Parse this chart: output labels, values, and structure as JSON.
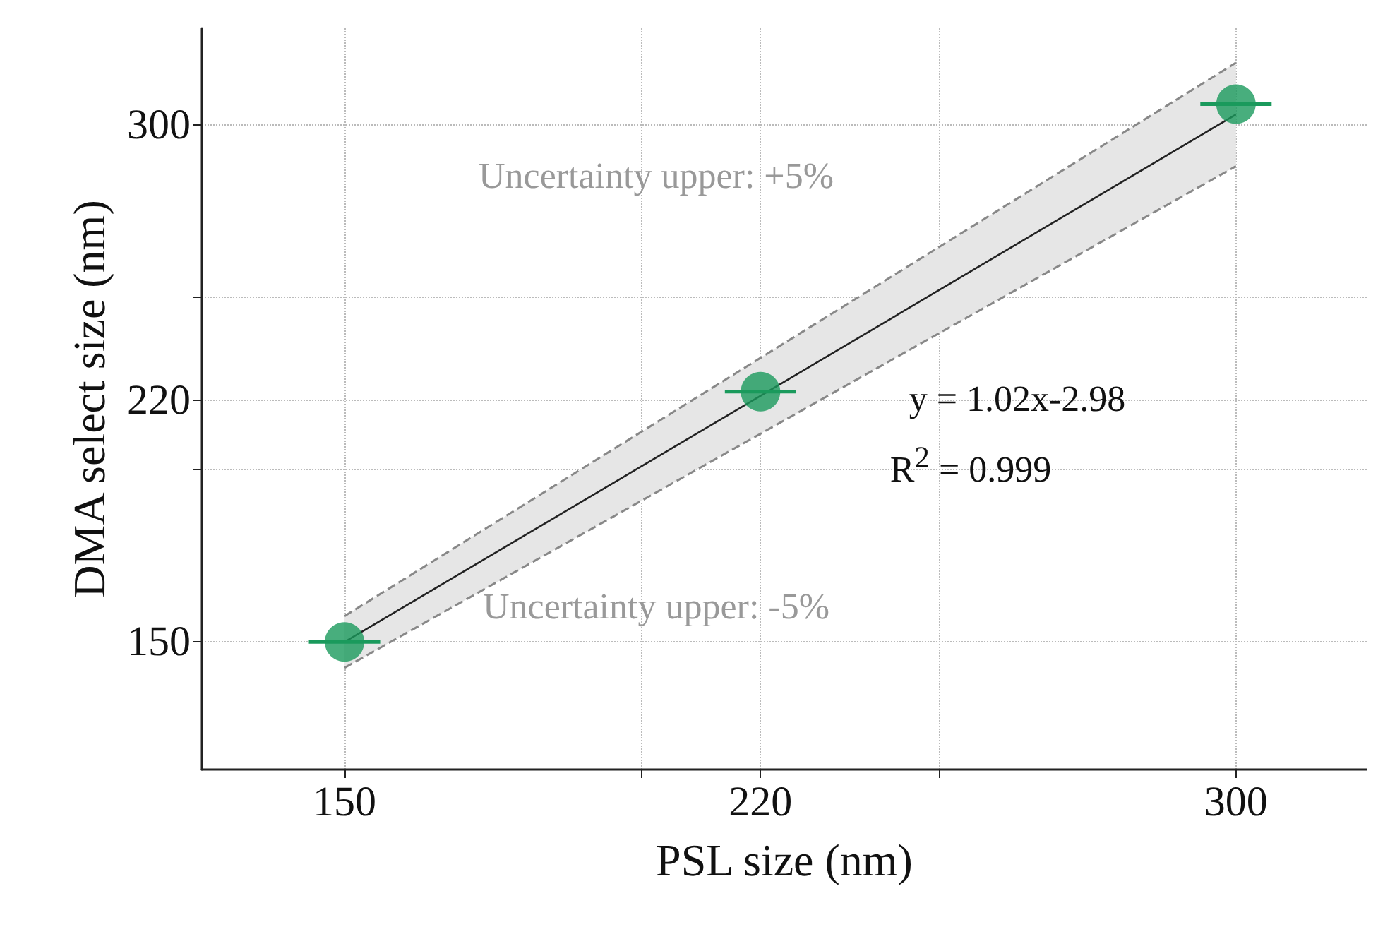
{
  "chart_data": {
    "type": "scatter",
    "xlabel": "PSL size (nm)",
    "ylabel": "DMA select size (nm)",
    "xlim": [
      126,
      322
    ],
    "ylim": [
      113,
      328
    ],
    "xticks": [
      150,
      {
        "value": 200,
        "label": null
      },
      220,
      {
        "value": 250,
        "label": null
      },
      300
    ],
    "yticks": [
      150,
      {
        "value": 200,
        "label": null
      },
      220,
      {
        "value": 250,
        "label": null
      },
      300
    ],
    "grid": true,
    "marker": "circle",
    "series": [
      {
        "type": "line",
        "color": "#222222",
        "x": [
          150,
          300
        ],
        "values": [
          150,
          303
        ],
        "lower": [
          142.5,
          288
        ],
        "upper": [
          157.5,
          318
        ],
        "line_style": "solid",
        "marker": "none"
      },
      {
        "type": "line",
        "color": "#888888",
        "x": [
          150,
          300
        ],
        "values": [
          157.5,
          318
        ],
        "line_style": "dashed",
        "marker": "none"
      },
      {
        "type": "line",
        "color": "#888888",
        "x": [
          150,
          300
        ],
        "values": [
          142.5,
          288
        ],
        "line_style": "dashed",
        "marker": "none"
      },
      {
        "color": "#1a9a5c",
        "x": [
          150,
          220,
          300
        ],
        "values": [
          150,
          222.6,
          306
        ],
        "xerrors": [
          6,
          6,
          6
        ]
      }
    ],
    "annotations": [
      "Uncertainty upper: +5%",
      "Uncertainty upper: -5%",
      "y = 1.02x-2.98",
      "R$^{2}$ = 0.999"
    ]
  }
}
